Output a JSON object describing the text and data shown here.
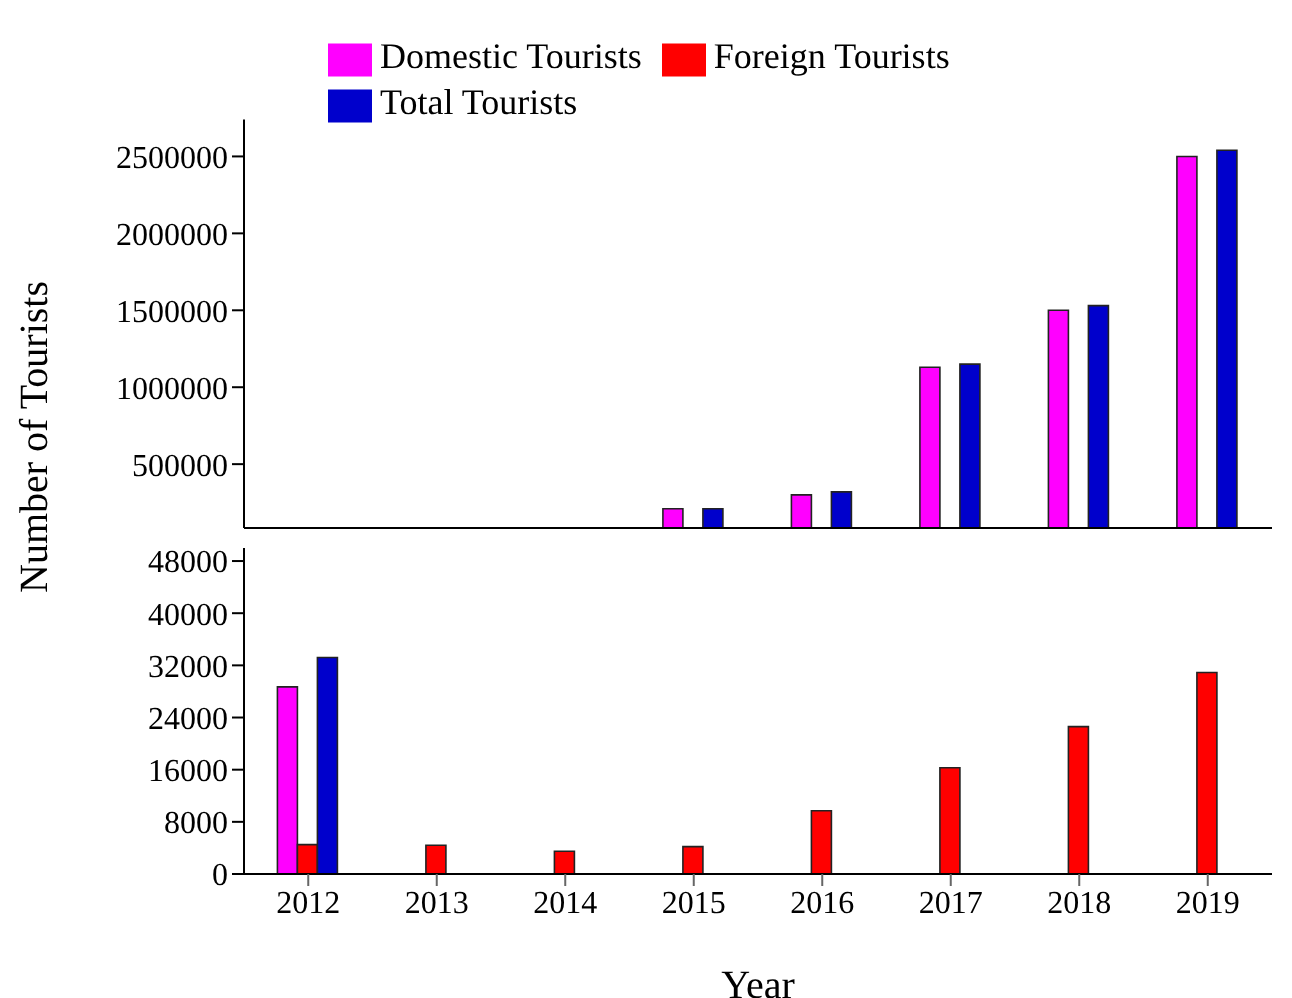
{
  "chart_data": [
    {
      "type": "bar",
      "categories": [
        "2012",
        "2013",
        "2014",
        "2015",
        "2016",
        "2017",
        "2018",
        "2019"
      ],
      "ylim": [
        85000,
        2740000
      ],
      "yticks": [
        500000,
        1000000,
        1500000,
        2000000,
        2500000
      ],
      "tick_labels": "y",
      "legend": "top left",
      "series": [
        {
          "name": "Domestic Tourists",
          "color": "#ff00ff",
          "values": [
            null,
            null,
            null,
            210000,
            300000,
            1130000,
            1500000,
            2500000
          ]
        },
        {
          "name": "Foreign Tourists",
          "color": "#ff0000",
          "values": [
            null,
            null,
            null,
            null,
            null,
            null,
            null,
            null
          ]
        },
        {
          "name": "Total Tourists",
          "color": "#0000cc",
          "values": [
            null,
            null,
            null,
            210000,
            320000,
            1150000,
            1530000,
            2540000
          ]
        }
      ]
    },
    {
      "type": "bar",
      "categories": [
        "2012",
        "2013",
        "2014",
        "2015",
        "2016",
        "2017",
        "2018",
        "2019"
      ],
      "ylim": [
        0,
        50000
      ],
      "yticks": [
        0,
        8000,
        16000,
        24000,
        32000,
        40000,
        48000
      ],
      "xlabel": "Year",
      "ylabel": "Number of Tourists",
      "series": [
        {
          "color": "#ff00ff",
          "values": [
            28700,
            null,
            null,
            null,
            null,
            null,
            null,
            null
          ]
        },
        {
          "color": "#ff0000",
          "values": [
            4500,
            4400,
            3500,
            4200,
            9700,
            16300,
            22600,
            30900
          ]
        },
        {
          "color": "#0000cc",
          "values": [
            33200,
            null,
            null,
            null,
            null,
            null,
            null,
            null
          ]
        }
      ]
    }
  ]
}
